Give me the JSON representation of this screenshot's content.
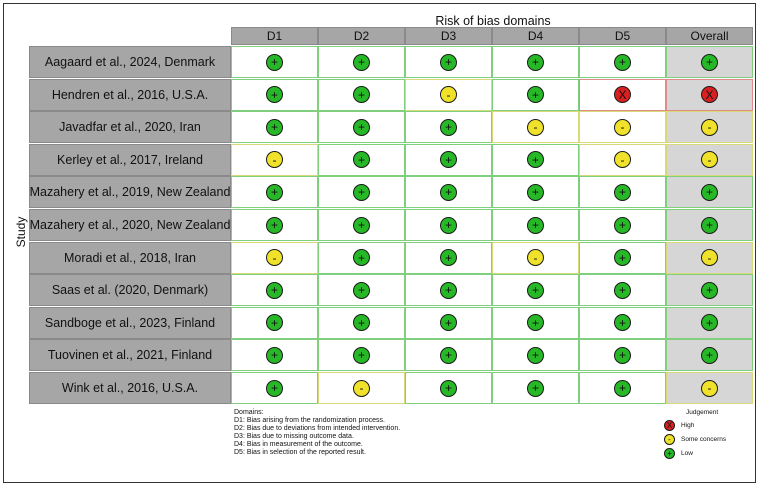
{
  "title": "Risk of bias domains",
  "y_axis_label": "Study",
  "headers": [
    "D1",
    "D2",
    "D3",
    "D4",
    "D5",
    "Overall"
  ],
  "symbols": {
    "low": "+",
    "some": "-",
    "high": "X"
  },
  "colors": {
    "low": "#26b826",
    "some": "#f0e22a",
    "high": "#d92020",
    "label_bg": "#a6a6a6"
  },
  "studies": [
    {
      "name": "Aagaard et al., 2024, Denmark",
      "judgements": [
        "low",
        "low",
        "low",
        "low",
        "low",
        "low"
      ]
    },
    {
      "name": "Hendren et al., 2016, U.S.A.",
      "judgements": [
        "low",
        "low",
        "some",
        "low",
        "high",
        "high"
      ]
    },
    {
      "name": "Javadfar et al., 2020, Iran",
      "judgements": [
        "low",
        "low",
        "low",
        "some",
        "some",
        "some"
      ]
    },
    {
      "name": "Kerley et al., 2017, Ireland",
      "judgements": [
        "some",
        "low",
        "low",
        "low",
        "some",
        "some"
      ]
    },
    {
      "name": "Mazahery et al., 2019, New Zealand",
      "judgements": [
        "low",
        "low",
        "low",
        "low",
        "low",
        "low"
      ]
    },
    {
      "name": "Mazahery et al., 2020, New Zealand",
      "judgements": [
        "low",
        "low",
        "low",
        "low",
        "low",
        "low"
      ]
    },
    {
      "name": "Moradi et al., 2018, Iran",
      "judgements": [
        "some",
        "low",
        "low",
        "some",
        "low",
        "some"
      ]
    },
    {
      "name": "Saas et al. (2020, Denmark)",
      "judgements": [
        "low",
        "low",
        "low",
        "low",
        "low",
        "low"
      ]
    },
    {
      "name": "Sandboge et al., 2023, Finland",
      "judgements": [
        "low",
        "low",
        "low",
        "low",
        "low",
        "low"
      ]
    },
    {
      "name": "Tuovinen et al., 2021, Finland",
      "judgements": [
        "low",
        "low",
        "low",
        "low",
        "low",
        "low"
      ]
    },
    {
      "name": "Wink et al., 2016, U.S.A.",
      "judgements": [
        "low",
        "some",
        "low",
        "low",
        "low",
        "some"
      ]
    }
  ],
  "domains_note": {
    "title": "Domains:",
    "lines": [
      "D1: Bias arising from the randomization process.",
      "D2: Bias due to deviations from intended intervention.",
      "D3: Bias due to missing outcome data.",
      "D4: Bias in measurement of the outcome.",
      "D5: Bias in selection of the reported result."
    ]
  },
  "legend": {
    "title": "Judgement",
    "items": [
      {
        "level": "high",
        "label": "High"
      },
      {
        "level": "some",
        "label": "Some concerns"
      },
      {
        "level": "low",
        "label": "Low"
      }
    ]
  }
}
